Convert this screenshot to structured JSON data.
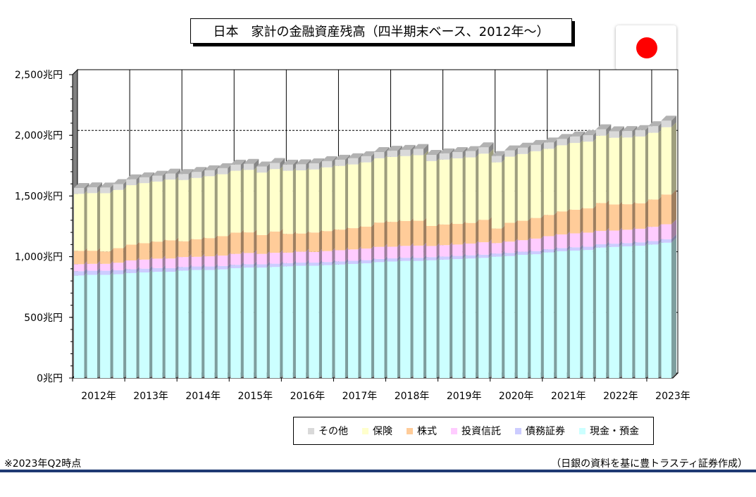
{
  "title": "日本　家計の金融資産残高（四半期末ベース、2012年～）",
  "flag_icon": "japan-flag-icon",
  "note": "※2023年Q2時点",
  "source": "（日銀の資料を基に豊トラスティ証券作成）",
  "chart_data": {
    "type": "bar",
    "stacked": true,
    "title": "",
    "xlabel": "",
    "ylabel": "",
    "ylim": [
      0,
      2500
    ],
    "yticks": [
      "0兆円",
      "500兆円",
      "1,000兆円",
      "1,500兆円",
      "2,000兆円",
      "2,500兆円"
    ],
    "ytick_values": [
      0,
      500,
      1000,
      1500,
      2000,
      2500
    ],
    "xticks": [
      "2012年",
      "2013年",
      "2014年",
      "2015年",
      "2016年",
      "2017年",
      "2018年",
      "2019年",
      "2020年",
      "2021年",
      "2022年",
      "2023年"
    ],
    "categories": [
      "2012Q1",
      "2012Q2",
      "2012Q3",
      "2012Q4",
      "2013Q1",
      "2013Q2",
      "2013Q3",
      "2013Q4",
      "2014Q1",
      "2014Q2",
      "2014Q3",
      "2014Q4",
      "2015Q1",
      "2015Q2",
      "2015Q3",
      "2015Q4",
      "2016Q1",
      "2016Q2",
      "2016Q3",
      "2016Q4",
      "2017Q1",
      "2017Q2",
      "2017Q3",
      "2017Q4",
      "2018Q1",
      "2018Q2",
      "2018Q3",
      "2018Q4",
      "2019Q1",
      "2019Q2",
      "2019Q3",
      "2019Q4",
      "2020Q1",
      "2020Q2",
      "2020Q3",
      "2020Q4",
      "2021Q1",
      "2021Q2",
      "2021Q3",
      "2021Q4",
      "2022Q1",
      "2022Q2",
      "2022Q3",
      "2022Q4",
      "2023Q1",
      "2023Q2"
    ],
    "legend_position": "bottom",
    "series": [
      {
        "name": "現金・預金",
        "color": "#ccffff",
        "values": [
          845,
          850,
          850,
          855,
          865,
          870,
          875,
          875,
          885,
          890,
          890,
          895,
          905,
          910,
          910,
          915,
          920,
          925,
          925,
          930,
          935,
          940,
          945,
          955,
          960,
          965,
          965,
          970,
          975,
          980,
          985,
          990,
          1000,
          1005,
          1015,
          1020,
          1035,
          1045,
          1050,
          1055,
          1075,
          1080,
          1085,
          1090,
          1100,
          1115
        ]
      },
      {
        "name": "債務証券",
        "color": "#ccccff",
        "values": [
          35,
          34,
          34,
          33,
          32,
          31,
          31,
          30,
          30,
          29,
          29,
          28,
          28,
          28,
          27,
          27,
          27,
          26,
          26,
          26,
          26,
          26,
          26,
          26,
          26,
          26,
          26,
          26,
          26,
          26,
          26,
          26,
          26,
          26,
          26,
          26,
          26,
          26,
          27,
          27,
          27,
          27,
          27,
          28,
          28,
          29
        ]
      },
      {
        "name": "投資信託",
        "color": "#ffccff",
        "values": [
          58,
          57,
          57,
          62,
          72,
          75,
          78,
          80,
          82,
          80,
          84,
          86,
          90,
          92,
          86,
          90,
          86,
          90,
          88,
          90,
          92,
          94,
          96,
          100,
          96,
          98,
          100,
          92,
          94,
          94,
          97,
          103,
          86,
          93,
          95,
          103,
          108,
          112,
          115,
          116,
          110,
          108,
          110,
          112,
          118,
          123
        ]
      },
      {
        "name": "株式",
        "color": "#ffcc99",
        "values": [
          110,
          108,
          102,
          120,
          130,
          135,
          140,
          150,
          130,
          145,
          150,
          160,
          175,
          170,
          155,
          175,
          155,
          150,
          160,
          165,
          170,
          175,
          180,
          200,
          205,
          205,
          205,
          165,
          170,
          170,
          170,
          185,
          120,
          155,
          160,
          170,
          175,
          190,
          195,
          200,
          230,
          215,
          210,
          210,
          225,
          245
        ]
      },
      {
        "name": "保険",
        "color": "#ffffcc",
        "values": [
          470,
          475,
          480,
          480,
          490,
          495,
          495,
          500,
          505,
          505,
          510,
          510,
          510,
          515,
          515,
          515,
          520,
          520,
          520,
          525,
          525,
          525,
          530,
          530,
          535,
          535,
          540,
          535,
          535,
          540,
          540,
          545,
          545,
          545,
          550,
          550,
          545,
          545,
          550,
          550,
          555,
          550,
          550,
          550,
          550,
          555
        ]
      },
      {
        "name": "その他",
        "color": "#d9d9d9",
        "values": [
          48,
          47,
          47,
          48,
          48,
          48,
          48,
          49,
          49,
          49,
          49,
          50,
          50,
          50,
          50,
          50,
          50,
          50,
          50,
          51,
          51,
          51,
          51,
          51,
          51,
          51,
          51,
          51,
          51,
          52,
          52,
          52,
          52,
          52,
          52,
          52,
          52,
          52,
          53,
          53,
          53,
          53,
          53,
          53,
          54,
          54
        ]
      }
    ]
  }
}
